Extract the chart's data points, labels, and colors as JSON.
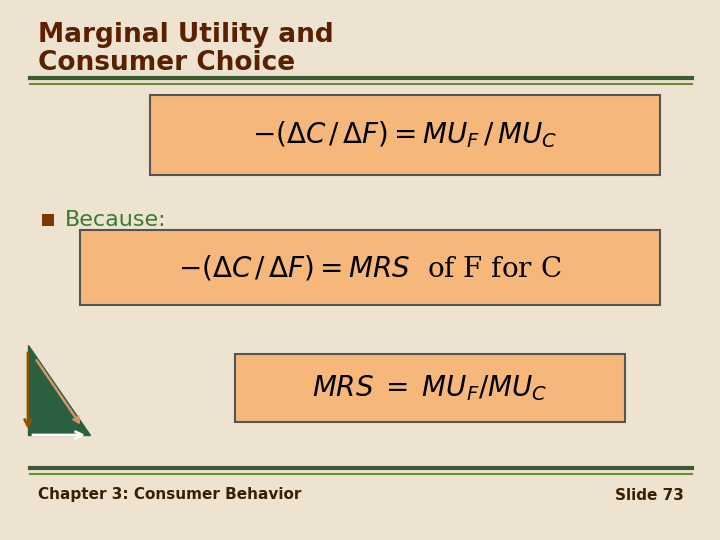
{
  "title_line1": "Marginal Utility and",
  "title_line2": "Consumer Choice",
  "title_color": "#5B2000",
  "background_color": "#EDE3D0",
  "box_fill": "#F5B87A",
  "box_edge": "#555555",
  "sep_dark": "#3A5C30",
  "sep_light": "#6B8B3A",
  "footer_left": "Chapter 3: Consumer Behavior",
  "footer_right": "Slide 73",
  "footer_color": "#3A2000",
  "bullet_color": "#7B3B00",
  "bullet_text": "Because:",
  "bullet_text_color": "#3A7A30",
  "triangle_color": "#2A6040",
  "arrow_down_color": "#8B5500",
  "arrow_right_color": "#FFFFFF",
  "arrow_diag_color": "#D4956A"
}
